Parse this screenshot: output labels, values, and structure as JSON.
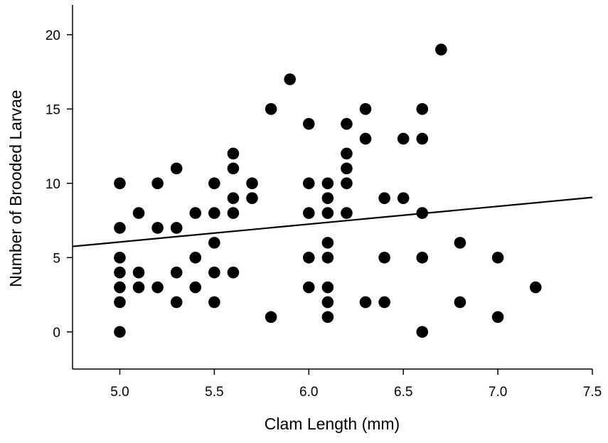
{
  "chart_data": {
    "type": "scatter",
    "title": "",
    "xlabel": "Clam Length (mm)",
    "ylabel": "Number of Brooded Larvae",
    "xlim": [
      4.75,
      7.5
    ],
    "ylim": [
      -2.5,
      22
    ],
    "xticks": [
      5.0,
      5.5,
      6.0,
      6.5,
      7.0,
      7.5
    ],
    "xtick_labels": [
      "5.0",
      "5.5",
      "6.0",
      "6.5",
      "7.0",
      "7.5"
    ],
    "yticks": [
      0,
      5,
      10,
      15,
      20
    ],
    "ytick_labels": [
      "0",
      "5",
      "10",
      "15",
      "20"
    ],
    "grid": false,
    "legend": "none",
    "marker_color": "#000000",
    "points": [
      [
        5.0,
        10
      ],
      [
        5.0,
        7
      ],
      [
        5.0,
        5
      ],
      [
        5.0,
        4
      ],
      [
        5.0,
        3
      ],
      [
        5.0,
        2
      ],
      [
        5.0,
        0
      ],
      [
        5.1,
        8
      ],
      [
        5.1,
        4
      ],
      [
        5.1,
        3
      ],
      [
        5.2,
        10
      ],
      [
        5.2,
        7
      ],
      [
        5.2,
        3
      ],
      [
        5.3,
        11
      ],
      [
        5.3,
        7
      ],
      [
        5.3,
        4
      ],
      [
        5.3,
        2
      ],
      [
        5.4,
        8
      ],
      [
        5.4,
        5
      ],
      [
        5.4,
        3
      ],
      [
        5.5,
        10
      ],
      [
        5.5,
        8
      ],
      [
        5.5,
        6
      ],
      [
        5.5,
        4
      ],
      [
        5.5,
        2
      ],
      [
        5.6,
        12
      ],
      [
        5.6,
        11
      ],
      [
        5.6,
        9
      ],
      [
        5.6,
        8
      ],
      [
        5.6,
        4
      ],
      [
        5.7,
        10
      ],
      [
        5.7,
        9
      ],
      [
        5.8,
        15
      ],
      [
        5.8,
        1
      ],
      [
        5.9,
        17
      ],
      [
        6.0,
        14
      ],
      [
        6.0,
        10
      ],
      [
        6.0,
        8
      ],
      [
        6.0,
        5
      ],
      [
        6.0,
        3
      ],
      [
        6.1,
        10
      ],
      [
        6.1,
        9
      ],
      [
        6.1,
        8
      ],
      [
        6.1,
        6
      ],
      [
        6.1,
        5
      ],
      [
        6.1,
        3
      ],
      [
        6.1,
        2
      ],
      [
        6.1,
        1
      ],
      [
        6.2,
        14
      ],
      [
        6.2,
        12
      ],
      [
        6.2,
        11
      ],
      [
        6.2,
        10
      ],
      [
        6.2,
        8
      ],
      [
        6.3,
        15
      ],
      [
        6.3,
        13
      ],
      [
        6.3,
        2
      ],
      [
        6.4,
        9
      ],
      [
        6.4,
        5
      ],
      [
        6.4,
        2
      ],
      [
        6.5,
        13
      ],
      [
        6.5,
        9
      ],
      [
        6.6,
        15
      ],
      [
        6.6,
        13
      ],
      [
        6.6,
        8
      ],
      [
        6.6,
        5
      ],
      [
        6.6,
        0
      ],
      [
        6.7,
        19
      ],
      [
        6.8,
        6
      ],
      [
        6.8,
        2
      ],
      [
        7.0,
        5
      ],
      [
        7.0,
        1
      ],
      [
        7.2,
        3
      ]
    ],
    "regression_line": {
      "x": [
        4.75,
        7.5
      ],
      "y": [
        5.75,
        9.05
      ]
    }
  }
}
